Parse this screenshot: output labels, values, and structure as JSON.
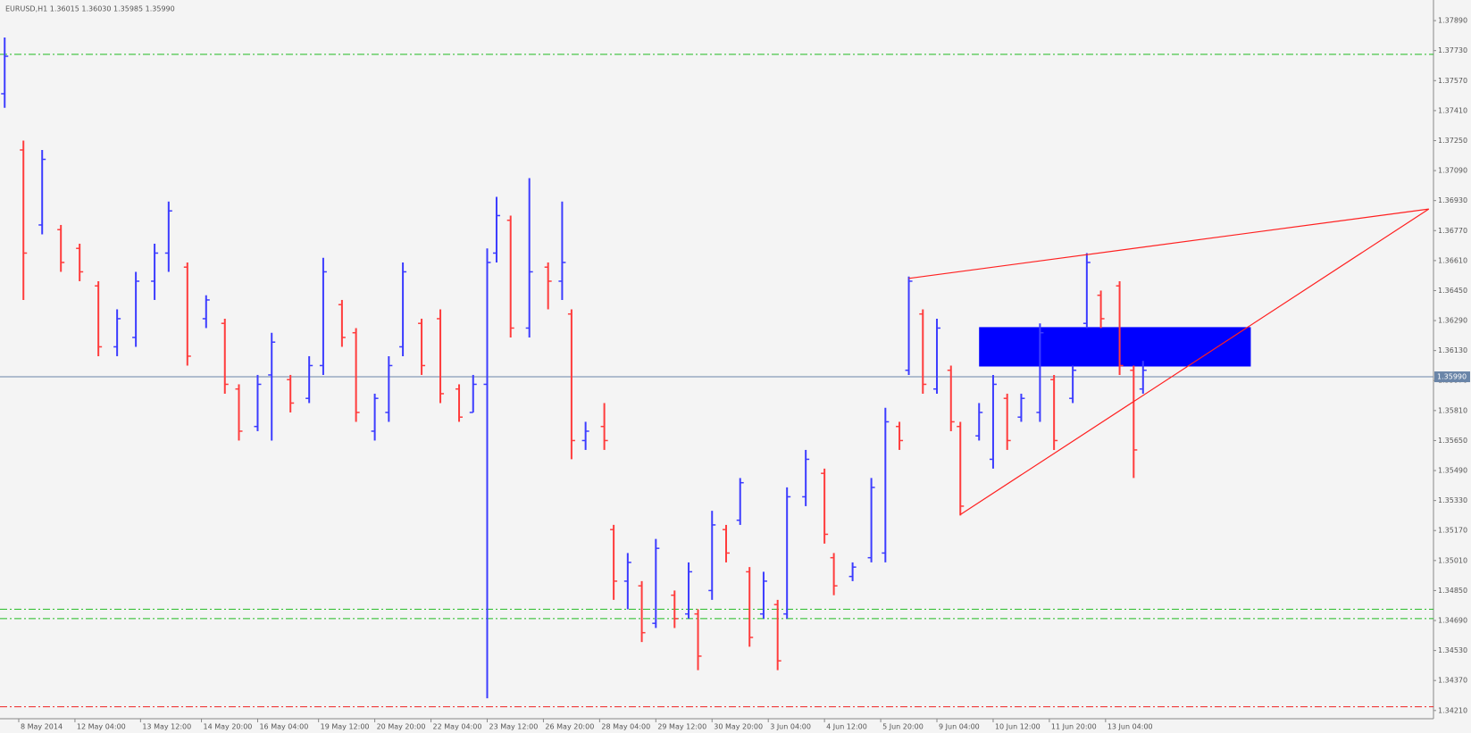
{
  "chart_data": {
    "type": "ohlc",
    "title": "EURUSD,H1 1.36015 1.36030 1.35985 1.35990",
    "up_color": "#3c3cff",
    "down_color": "#ff3c3c",
    "background": "#f4f4f4",
    "xlim": [
      0,
      306
    ],
    "ylim": [
      1.3409,
      1.38
    ],
    "yticks": [
      {
        "value": 1.3789,
        "label": "1.37890"
      },
      {
        "value": 1.3773,
        "label": "1.37730"
      },
      {
        "value": 1.3757,
        "label": "1.37570"
      },
      {
        "value": 1.3741,
        "label": "1.37410"
      },
      {
        "value": 1.3725,
        "label": "1.37250"
      },
      {
        "value": 1.3709,
        "label": "1.37090"
      },
      {
        "value": 1.3693,
        "label": "1.36930"
      },
      {
        "value": 1.3677,
        "label": "1.36770"
      },
      {
        "value": 1.3661,
        "label": "1.36610"
      },
      {
        "value": 1.3645,
        "label": "1.36450"
      },
      {
        "value": 1.3629,
        "label": "1.36290"
      },
      {
        "value": 1.3613,
        "label": "1.36130"
      },
      {
        "value": 1.3597,
        "label": "1.35970"
      },
      {
        "value": 1.3581,
        "label": "1.35810"
      },
      {
        "value": 1.3565,
        "label": "1.35650"
      },
      {
        "value": 1.3549,
        "label": "1.35490"
      },
      {
        "value": 1.3533,
        "label": "1.35330"
      },
      {
        "value": 1.3517,
        "label": "1.35170"
      },
      {
        "value": 1.3501,
        "label": "1.35010"
      },
      {
        "value": 1.3485,
        "label": "1.34850"
      },
      {
        "value": 1.3469,
        "label": "1.34690"
      },
      {
        "value": 1.3453,
        "label": "1.34530"
      },
      {
        "value": 1.3437,
        "label": "1.34370"
      },
      {
        "value": 1.3421,
        "label": "1.34210"
      }
    ],
    "xticks": [
      {
        "value": 4,
        "label": "8 May 2014"
      },
      {
        "value": 16,
        "label": "12 May 04:00"
      },
      {
        "value": 30,
        "label": "13 May 12:00"
      },
      {
        "value": 43,
        "label": "14 May 20:00"
      },
      {
        "value": 55,
        "label": "16 May 04:00"
      },
      {
        "value": 68,
        "label": "19 May 12:00"
      },
      {
        "value": 80,
        "label": "20 May 20:00"
      },
      {
        "value": 92,
        "label": "22 May 04:00"
      },
      {
        "value": 104,
        "label": "23 May 12:00"
      },
      {
        "value": 116,
        "label": "26 May 20:00"
      },
      {
        "value": 128,
        "label": "28 May 04:00"
      },
      {
        "value": 140,
        "label": "29 May 12:00"
      },
      {
        "value": 152,
        "label": "30 May 20:00"
      },
      {
        "value": 164,
        "label": "3 Jun 04:00"
      },
      {
        "value": 176,
        "label": "4 Jun 12:00"
      },
      {
        "value": 188,
        "label": "5 Jun 20:00"
      },
      {
        "value": 200,
        "label": "9 Jun 04:00"
      },
      {
        "value": 212,
        "label": "10 Jun 12:00"
      },
      {
        "value": 224,
        "label": "11 Jun 20:00"
      },
      {
        "value": 236,
        "label": "13 Jun 04:00"
      }
    ],
    "x": [
      1,
      5,
      9,
      13,
      17,
      21,
      25,
      29,
      33,
      36,
      40,
      44,
      48,
      51,
      55,
      58,
      62,
      66,
      69,
      73,
      76,
      80,
      83,
      86,
      90,
      94,
      98,
      101,
      104,
      106,
      109,
      113,
      117,
      120,
      122,
      125,
      129,
      131,
      134,
      137,
      140,
      144,
      147,
      149,
      152,
      155,
      158,
      160,
      163,
      166,
      168,
      172,
      176,
      178,
      182,
      186,
      189,
      192,
      194,
      197,
      200,
      203,
      205,
      209,
      212,
      215,
      218,
      222,
      225,
      229,
      232,
      235,
      239,
      242,
      244
    ],
    "open": [
      1.375,
      1.372,
      1.368,
      1.36775,
      1.36675,
      1.36475,
      1.3615,
      1.362,
      1.365,
      1.3665,
      1.36575,
      1.363,
      1.36275,
      1.35925,
      1.35725,
      1.36,
      1.35975,
      1.35875,
      1.3605,
      1.36375,
      1.36225,
      1.357,
      1.358,
      1.3615,
      1.36275,
      1.363,
      1.35925,
      1.358,
      1.3595,
      1.3665,
      1.36825,
      1.3625,
      1.36575,
      1.365,
      1.36325,
      1.3565,
      1.35725,
      1.35175,
      1.349,
      1.34875,
      1.34675,
      1.34825,
      1.34725,
      1.34725,
      1.3485,
      1.35175,
      1.35225,
      1.3495,
      1.34725,
      1.34775,
      1.34725,
      1.3535,
      1.35475,
      1.35025,
      1.34925,
      1.35025,
      1.3505,
      1.35725,
      1.36025,
      1.36325,
      1.35925,
      1.36025,
      1.35725,
      1.35675,
      1.3555,
      1.35875,
      1.35775,
      1.358,
      1.35975,
      1.35875,
      1.36275,
      1.36425,
      1.36475,
      1.36025,
      1.35925
    ],
    "high": [
      1.378,
      1.3725,
      1.372,
      1.368,
      1.367,
      1.365,
      1.3635,
      1.3655,
      1.367,
      1.36925,
      1.366,
      1.36425,
      1.363,
      1.3595,
      1.36,
      1.36225,
      1.36,
      1.361,
      1.36625,
      1.364,
      1.3625,
      1.359,
      1.361,
      1.366,
      1.363,
      1.3635,
      1.3595,
      1.36,
      1.36675,
      1.3695,
      1.3685,
      1.3705,
      1.366,
      1.36925,
      1.3635,
      1.3575,
      1.3585,
      1.352,
      1.3505,
      1.349,
      1.35125,
      1.3485,
      1.35,
      1.3475,
      1.35275,
      1.352,
      1.3545,
      1.34975,
      1.3495,
      1.348,
      1.354,
      1.356,
      1.355,
      1.3505,
      1.35,
      1.3545,
      1.35825,
      1.3575,
      1.36525,
      1.3635,
      1.363,
      1.3605,
      1.3575,
      1.3585,
      1.36,
      1.359,
      1.359,
      1.36275,
      1.36,
      1.3605,
      1.3665,
      1.3645,
      1.365,
      1.3605,
      1.36075
    ],
    "low": [
      1.37425,
      1.364,
      1.3675,
      1.3655,
      1.365,
      1.361,
      1.361,
      1.3615,
      1.364,
      1.3655,
      1.3605,
      1.3625,
      1.359,
      1.3565,
      1.357,
      1.3565,
      1.358,
      1.3585,
      1.36,
      1.3615,
      1.3575,
      1.3565,
      1.3575,
      1.361,
      1.36,
      1.3585,
      1.3575,
      1.358,
      1.34275,
      1.366,
      1.362,
      1.362,
      1.3635,
      1.364,
      1.3555,
      1.356,
      1.356,
      1.348,
      1.3475,
      1.34575,
      1.3465,
      1.3465,
      1.347,
      1.34425,
      1.348,
      1.35,
      1.352,
      1.3455,
      1.347,
      1.34425,
      1.347,
      1.353,
      1.351,
      1.34825,
      1.349,
      1.35,
      1.35,
      1.356,
      1.36,
      1.359,
      1.359,
      1.357,
      1.3525,
      1.3565,
      1.355,
      1.356,
      1.3575,
      1.3575,
      1.356,
      1.3585,
      1.3625,
      1.3625,
      1.36,
      1.3545,
      1.359
    ],
    "close": [
      1.377,
      1.3665,
      1.3715,
      1.366,
      1.3655,
      1.3615,
      1.363,
      1.365,
      1.3665,
      1.36875,
      1.361,
      1.364,
      1.3595,
      1.357,
      1.3595,
      1.36175,
      1.3585,
      1.3605,
      1.3655,
      1.362,
      1.358,
      1.35875,
      1.3605,
      1.3655,
      1.3605,
      1.359,
      1.35775,
      1.3595,
      1.366,
      1.3685,
      1.3625,
      1.3655,
      1.365,
      1.366,
      1.3565,
      1.357,
      1.3565,
      1.349,
      1.35,
      1.34625,
      1.35075,
      1.347,
      1.3495,
      1.345,
      1.352,
      1.3505,
      1.35425,
      1.346,
      1.349,
      1.34475,
      1.3535,
      1.3555,
      1.3515,
      1.34875,
      1.34975,
      1.354,
      1.3575,
      1.3565,
      1.365,
      1.3595,
      1.3625,
      1.3575,
      1.353,
      1.358,
      1.3595,
      1.3565,
      1.35875,
      1.36225,
      1.3565,
      1.36025,
      1.366,
      1.363,
      1.3605,
      1.356,
      1.36025
    ],
    "hlines": [
      {
        "value": 1.3771,
        "color": "#22bb22"
      },
      {
        "value": 1.3475,
        "color": "#22bb22"
      },
      {
        "value": 1.347,
        "color": "#22bb22"
      },
      {
        "value": 1.3423,
        "color": "#ee2222"
      }
    ],
    "current_price": {
      "value": 1.3599,
      "label": "1.35990",
      "color": "#6a85a8"
    },
    "rectangle": {
      "x": [
        209,
        267
      ],
      "y": [
        1.36255,
        1.36045
      ],
      "color": "#0000ff"
    },
    "trendlines": [
      {
        "x": [
          194,
          305
        ],
        "y": [
          1.36515,
          1.36885
        ],
        "color": "#ff2020"
      },
      {
        "x": [
          205,
          305
        ],
        "y": [
          1.35255,
          1.36885
        ],
        "color": "#ff2020"
      }
    ]
  }
}
